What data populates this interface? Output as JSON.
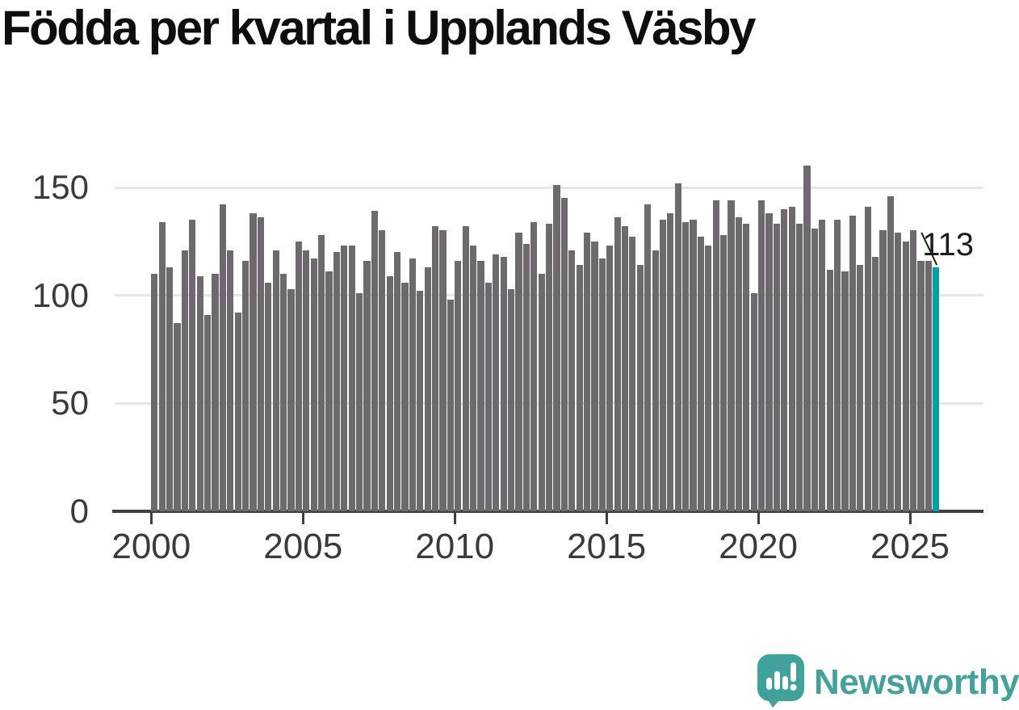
{
  "title": "Födda per kvartal i Upplands Väsby",
  "annotation_label": "113",
  "footer": {
    "brand": "Newsworthy"
  },
  "colors": {
    "bar": "#6d696f",
    "highlight": "#00a0a3",
    "grid": "#e7e6e7",
    "axis": "#3f3e40",
    "tick_text": "#3a3a3a",
    "title_text": "#0e0e0e",
    "logo_teal": "#41a19b",
    "logo_teal_dark": "#2d8c86",
    "logo_text_teal": "#47a19b"
  },
  "chart_data": {
    "type": "bar",
    "title": "Födda per kvartal i Upplands Väsby",
    "x_start": "2000 Q1",
    "x_end": "2025 Q4",
    "frequency": "quarterly",
    "x_tick_labels": [
      "2000",
      "2005",
      "2010",
      "2015",
      "2020",
      "2025"
    ],
    "y_ticks": [
      0,
      50,
      100,
      150
    ],
    "y_tick_labels": [
      "0",
      "50",
      "100",
      "150"
    ],
    "ylim": [
      0,
      165
    ],
    "grid": "horizontal",
    "legend": "none",
    "highlight_index": 103,
    "annotation": {
      "text": "113",
      "value": 113,
      "target": "2025 Q4"
    },
    "values": [
      110,
      134,
      113,
      87,
      121,
      135,
      109,
      91,
      110,
      142,
      121,
      92,
      116,
      138,
      136,
      106,
      121,
      110,
      103,
      125,
      121,
      117,
      128,
      111,
      120,
      123,
      123,
      101,
      116,
      139,
      130,
      109,
      120,
      106,
      117,
      102,
      113,
      132,
      130,
      98,
      116,
      132,
      123,
      116,
      106,
      119,
      118,
      103,
      129,
      124,
      134,
      110,
      133,
      151,
      145,
      121,
      114,
      129,
      125,
      117,
      123,
      136,
      132,
      127,
      114,
      142,
      121,
      135,
      138,
      152,
      134,
      135,
      127,
      123,
      144,
      128,
      144,
      136,
      133,
      101,
      144,
      138,
      133,
      140,
      141,
      133,
      160,
      131,
      135,
      112,
      135,
      111,
      137,
      114,
      141,
      118,
      130,
      146,
      129,
      125,
      130,
      116,
      116,
      113
    ]
  }
}
